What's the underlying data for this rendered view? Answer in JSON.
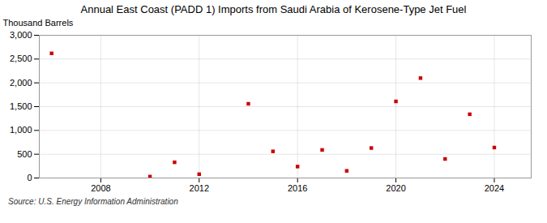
{
  "chart_data": {
    "type": "scatter",
    "title": "Annual East Coast (PADD 1) Imports from Saudi Arabia of Kerosene-Type Jet Fuel",
    "ylabel": "Thousand Barrels",
    "source": "Source: U.S. Energy Information Administration",
    "x": [
      2006,
      2010,
      2011,
      2012,
      2014,
      2015,
      2016,
      2017,
      2018,
      2019,
      2020,
      2021,
      2022,
      2023,
      2024
    ],
    "values": [
      2620,
      30,
      330,
      80,
      1560,
      560,
      240,
      590,
      150,
      630,
      1610,
      2100,
      400,
      1340,
      640
    ],
    "color": "#cc0000",
    "marker": "square",
    "xlim": [
      2005.5,
      2025.5
    ],
    "xticks": [
      2008,
      2012,
      2016,
      2020,
      2024
    ],
    "ylim": [
      0,
      3000
    ],
    "yticks": [
      0,
      500,
      {
        "value": 1000,
        "label": "1,000"
      },
      {
        "value": 1500,
        "label": "1,500"
      },
      {
        "value": 2000,
        "label": "2,000"
      },
      {
        "value": 2500,
        "label": "2,500"
      },
      {
        "value": 3000,
        "label": "3,000"
      }
    ],
    "grid": true
  }
}
